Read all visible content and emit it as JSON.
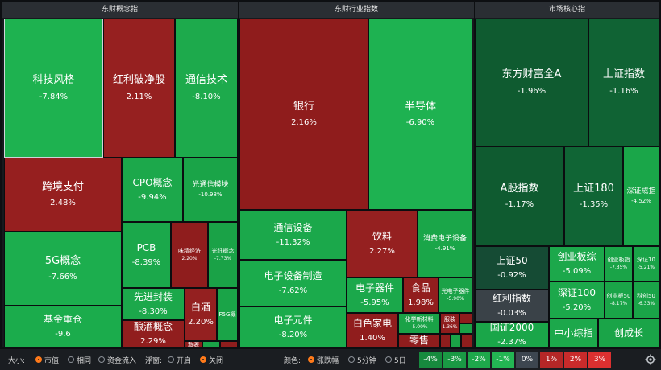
{
  "colors": {
    "deep_red": "#8d1b1b",
    "red": "#9c2222",
    "green_dark": "#0f5e31",
    "green": "#18a349",
    "green_mid": "#14873b",
    "neutral": "#3a4248"
  },
  "panels": [
    {
      "title": "东财概念指"
    },
    {
      "title": "东财行业指数"
    },
    {
      "title": "市场核心指"
    }
  ],
  "tiles": [
    {
      "name": "科技风格",
      "pct": "-7.84%"
    },
    {
      "name": "红利破净股",
      "pct": "2.11%"
    },
    {
      "name": "通信技术",
      "pct": "-8.10%"
    },
    {
      "name": "跨境支付",
      "pct": "2.48%"
    },
    {
      "name": "CPO概念",
      "pct": "-9.94%"
    },
    {
      "name": "光通信模块",
      "pct": "-10.98%"
    },
    {
      "name": "PCB",
      "pct": "-8.39%"
    },
    {
      "name": "味精经济",
      "pct": "2.20%"
    },
    {
      "name": "光纤概念",
      "pct": "-7.73%"
    },
    {
      "name": "5G概念",
      "pct": "-7.66%"
    },
    {
      "name": "先进封装",
      "pct": "-8.30%"
    },
    {
      "name": "白酒",
      "pct": "2.20%"
    },
    {
      "name": "F5G概",
      "pct": ""
    },
    {
      "name": "酿酒概念",
      "pct": "2.29%"
    },
    {
      "name": "基金重仓",
      "pct": "-9.6"
    },
    {
      "name": "瓶装",
      "pct": ""
    },
    {
      "name": "银行",
      "pct": "2.16%"
    },
    {
      "name": "半导体",
      "pct": "-6.90%"
    },
    {
      "name": "通信设备",
      "pct": "-11.32%"
    },
    {
      "name": "饮料",
      "pct": "2.27%"
    },
    {
      "name": "消费电子设备",
      "pct": "-4.91%"
    },
    {
      "name": "电子设备制造",
      "pct": "-7.62%"
    },
    {
      "name": "电子器件",
      "pct": "-5.95%"
    },
    {
      "name": "食品",
      "pct": "1.98%"
    },
    {
      "name": "光电子器件",
      "pct": "-5.90%"
    },
    {
      "name": "电子元件",
      "pct": "-8.20%"
    },
    {
      "name": "白色家电",
      "pct": "1.40%"
    },
    {
      "name": "化学新材料",
      "pct": "-5.00%"
    },
    {
      "name": "服装",
      "pct": "1.36%"
    },
    {
      "name": "零售",
      "pct": ""
    },
    {
      "name": "东方财富全A",
      "pct": "-1.96%"
    },
    {
      "name": "上证指数",
      "pct": "-1.16%"
    },
    {
      "name": "A股指数",
      "pct": "-1.17%"
    },
    {
      "name": "上证180",
      "pct": "-1.35%"
    },
    {
      "name": "深证成指",
      "pct": "-4.52%"
    },
    {
      "name": "上证50",
      "pct": "-0.92%"
    },
    {
      "name": "创业板综",
      "pct": "-5.09%"
    },
    {
      "name": "创业板指",
      "pct": "-7.35%"
    },
    {
      "name": "深证10",
      "pct": "-5.21%"
    },
    {
      "name": "红利指数",
      "pct": "-0.03%"
    },
    {
      "name": "深证100",
      "pct": "-5.20%"
    },
    {
      "name": "创业板50",
      "pct": "-8.17%"
    },
    {
      "name": "科创50",
      "pct": "-6.33%"
    },
    {
      "name": "国证2000",
      "pct": "-2.37%"
    },
    {
      "name": "中小综指",
      "pct": ""
    },
    {
      "name": "创成长",
      "pct": ""
    }
  ],
  "toolbar": {
    "size_label": "大小:",
    "size_opts": [
      "市值",
      "相同",
      "资金流入"
    ],
    "float_label": "浮窗:",
    "float_opts": [
      "开启",
      "关闭"
    ],
    "color_label": "颜色:",
    "color_opts": [
      "涨跌幅",
      "5分钟",
      "5日"
    ],
    "legend": [
      {
        "text": "-4%",
        "color": "#178a3e"
      },
      {
        "text": "-3%",
        "color": "#1a9944"
      },
      {
        "text": "-2%",
        "color": "#1ea84b"
      },
      {
        "text": "-1%",
        "color": "#23b553"
      },
      {
        "text": "0%",
        "color": "#3d4650"
      },
      {
        "text": "1%",
        "color": "#b52727"
      },
      {
        "text": "2%",
        "color": "#c92b2b"
      },
      {
        "text": "3%",
        "color": "#dc3030"
      }
    ],
    "settings_icon": "gear-icon"
  }
}
